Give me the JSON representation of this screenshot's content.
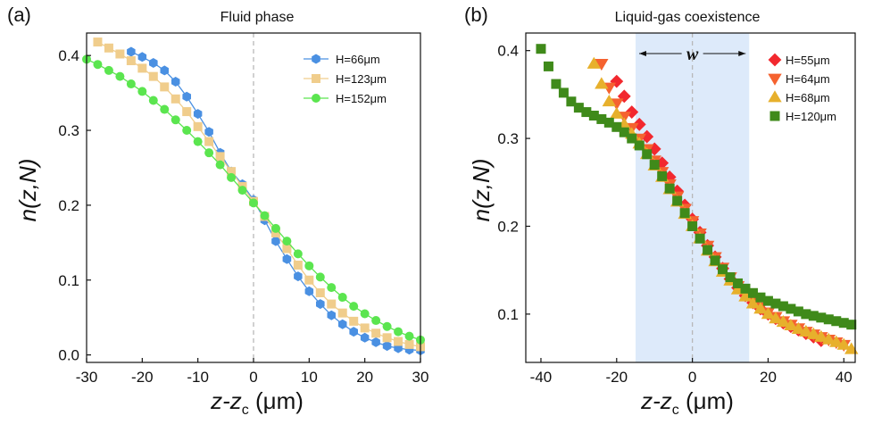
{
  "chart_data": [
    {
      "type": "line",
      "panel_label": "(a)",
      "title": "Fluid phase",
      "xlabel": "z-z",
      "xlabel_sub": "c",
      "xlabel_unit": " (μm)",
      "ylabel": "n(z,N)",
      "xlim": [
        -30,
        30
      ],
      "ylim": [
        -0.01,
        0.43
      ],
      "xticks": [
        -30,
        -20,
        -10,
        0,
        10,
        20,
        30
      ],
      "xtick_labels": [
        "-30",
        "-20",
        "-10",
        "0",
        "10",
        "20",
        "30"
      ],
      "yticks": [
        0.0,
        0.1,
        0.2,
        0.3,
        0.4
      ],
      "ytick_labels": [
        "0.0",
        "0.1",
        "0.2",
        "0.3",
        "0.4"
      ],
      "vline_x": 0,
      "legend": "top-right",
      "series": [
        {
          "name": "H=66μm",
          "color": "#4a90e2",
          "marker": "hexagon",
          "line": true,
          "x": [
            -22,
            -20,
            -18,
            -16,
            -14,
            -12,
            -10,
            -8,
            -6,
            -4,
            -2,
            0,
            2,
            4,
            6,
            8,
            10,
            12,
            14,
            16,
            18,
            20,
            22,
            24,
            26,
            28,
            30
          ],
          "y": [
            0.405,
            0.398,
            0.39,
            0.38,
            0.365,
            0.345,
            0.322,
            0.298,
            0.27,
            0.245,
            0.228,
            0.207,
            0.18,
            0.152,
            0.128,
            0.105,
            0.085,
            0.068,
            0.053,
            0.041,
            0.031,
            0.023,
            0.017,
            0.012,
            0.009,
            0.007,
            0.006
          ]
        },
        {
          "name": "H=123μm",
          "color": "#f0cd8c",
          "marker": "square",
          "line": true,
          "x": [
            -28,
            -26,
            -24,
            -22,
            -20,
            -18,
            -16,
            -14,
            -12,
            -10,
            -8,
            -6,
            -4,
            -2,
            0,
            2,
            4,
            6,
            8,
            10,
            12,
            14,
            16,
            18,
            20,
            22,
            24,
            26,
            28,
            30
          ],
          "y": [
            0.418,
            0.41,
            0.402,
            0.393,
            0.383,
            0.372,
            0.358,
            0.342,
            0.325,
            0.305,
            0.285,
            0.265,
            0.245,
            0.225,
            0.205,
            0.185,
            0.163,
            0.142,
            0.12,
            0.1,
            0.083,
            0.068,
            0.056,
            0.045,
            0.036,
            0.029,
            0.023,
            0.018,
            0.014,
            0.011
          ]
        },
        {
          "name": "H=152μm",
          "color": "#5be54f",
          "marker": "circle",
          "line": true,
          "x": [
            -30,
            -28,
            -26,
            -24,
            -22,
            -20,
            -18,
            -16,
            -14,
            -12,
            -10,
            -8,
            -6,
            -4,
            -2,
            0,
            2,
            4,
            6,
            8,
            10,
            12,
            14,
            16,
            18,
            20,
            22,
            24,
            26,
            28,
            30
          ],
          "y": [
            0.395,
            0.388,
            0.38,
            0.372,
            0.362,
            0.352,
            0.34,
            0.328,
            0.314,
            0.3,
            0.285,
            0.27,
            0.254,
            0.237,
            0.22,
            0.203,
            0.186,
            0.169,
            0.152,
            0.135,
            0.119,
            0.104,
            0.09,
            0.077,
            0.065,
            0.055,
            0.046,
            0.038,
            0.031,
            0.025,
            0.02
          ]
        }
      ]
    },
    {
      "type": "scatter",
      "panel_label": "(b)",
      "title": "Liquid-gas coexistence",
      "xlabel": "z-z",
      "xlabel_sub": "c",
      "xlabel_unit": " (μm)",
      "ylabel": "n(z,N)",
      "xlim": [
        -44,
        43
      ],
      "ylim": [
        0.045,
        0.42
      ],
      "xticks": [
        -40,
        -20,
        0,
        20,
        40
      ],
      "xtick_labels": [
        "-40",
        "-20",
        "0",
        "20",
        "40"
      ],
      "yticks": [
        0.1,
        0.2,
        0.3,
        0.4
      ],
      "ytick_labels": [
        "0.1",
        "0.2",
        "0.3",
        "0.4"
      ],
      "vline_x": 0,
      "band": [
        -15,
        15
      ],
      "band_color": "#ddeafa",
      "band_label": "w",
      "legend": "top-right",
      "series": [
        {
          "name": "H=55μm",
          "color": "#f2282e",
          "marker": "diamond",
          "line": false,
          "x": [
            -20,
            -18,
            -16,
            -14,
            -12,
            -10,
            -8,
            -6,
            -4,
            -2,
            0,
            2,
            4,
            6,
            8,
            10,
            12,
            14,
            16,
            18,
            20,
            22,
            24,
            26,
            28,
            30,
            32,
            34
          ],
          "y": [
            0.365,
            0.348,
            0.33,
            0.316,
            0.302,
            0.288,
            0.272,
            0.256,
            0.24,
            0.224,
            0.208,
            0.193,
            0.178,
            0.165,
            0.152,
            0.14,
            0.13,
            0.121,
            0.113,
            0.106,
            0.1,
            0.095,
            0.09,
            0.086,
            0.082,
            0.078,
            0.074,
            0.07
          ]
        },
        {
          "name": "H=64μm",
          "color": "#f5622f",
          "marker": "triangle-down",
          "line": false,
          "x": [
            -24,
            -22,
            -20,
            -18,
            -16,
            -14,
            -12,
            -10,
            -8,
            -6,
            -4,
            -2,
            0,
            2,
            4,
            6,
            8,
            10,
            12,
            14,
            16,
            18,
            20,
            22,
            24,
            26,
            28,
            30,
            32,
            34,
            36,
            38,
            40
          ],
          "y": [
            0.385,
            0.358,
            0.34,
            0.325,
            0.312,
            0.3,
            0.288,
            0.275,
            0.262,
            0.248,
            0.234,
            0.22,
            0.206,
            0.192,
            0.178,
            0.165,
            0.153,
            0.142,
            0.132,
            0.123,
            0.115,
            0.108,
            0.102,
            0.097,
            0.092,
            0.088,
            0.084,
            0.08,
            0.077,
            0.074,
            0.071,
            0.068,
            0.065
          ]
        },
        {
          "name": "H=68μm",
          "color": "#e7b02c",
          "marker": "triangle-up",
          "line": false,
          "x": [
            -26,
            -24,
            -22,
            -20,
            -18,
            -16,
            -14,
            -12,
            -10,
            -8,
            -6,
            -4,
            -2,
            0,
            2,
            4,
            6,
            8,
            10,
            12,
            14,
            16,
            18,
            20,
            22,
            24,
            26,
            28,
            30,
            32,
            34,
            36,
            38,
            40,
            42
          ],
          "y": [
            0.385,
            0.362,
            0.342,
            0.328,
            0.316,
            0.305,
            0.294,
            0.282,
            0.269,
            0.256,
            0.242,
            0.228,
            0.214,
            0.2,
            0.186,
            0.172,
            0.16,
            0.148,
            0.138,
            0.128,
            0.12,
            0.112,
            0.106,
            0.1,
            0.095,
            0.091,
            0.087,
            0.083,
            0.08,
            0.077,
            0.074,
            0.071,
            0.068,
            0.065,
            0.06
          ]
        },
        {
          "name": "H=120μm",
          "color": "#3f8a1a",
          "marker": "square",
          "line": false,
          "x": [
            -40,
            -38,
            -36,
            -34,
            -32,
            -30,
            -28,
            -26,
            -24,
            -22,
            -20,
            -18,
            -16,
            -14,
            -12,
            -10,
            -8,
            -6,
            -4,
            -2,
            0,
            2,
            4,
            6,
            8,
            10,
            12,
            14,
            16,
            18,
            20,
            22,
            24,
            26,
            28,
            30,
            32,
            34,
            36,
            38,
            40,
            42
          ],
          "y": [
            0.402,
            0.382,
            0.362,
            0.352,
            0.342,
            0.335,
            0.33,
            0.326,
            0.322,
            0.318,
            0.313,
            0.307,
            0.3,
            0.292,
            0.282,
            0.27,
            0.257,
            0.243,
            0.229,
            0.215,
            0.2,
            0.186,
            0.173,
            0.161,
            0.151,
            0.142,
            0.135,
            0.129,
            0.124,
            0.119,
            0.115,
            0.112,
            0.109,
            0.106,
            0.103,
            0.1,
            0.098,
            0.096,
            0.094,
            0.092,
            0.09,
            0.088
          ]
        }
      ]
    }
  ]
}
